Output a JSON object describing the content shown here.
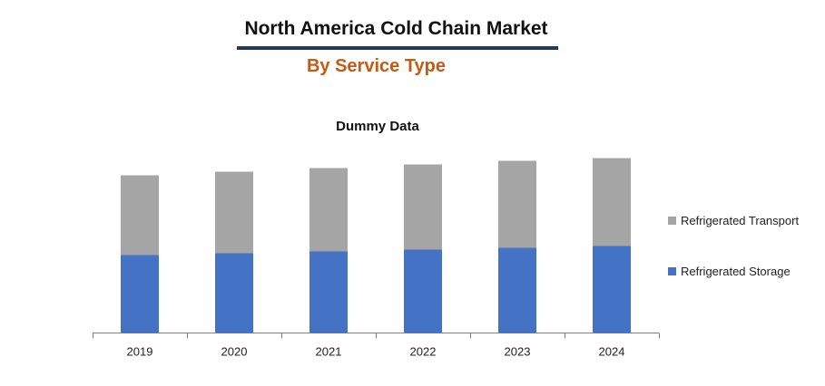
{
  "header": {
    "title": "North America Cold Chain Market",
    "subtitle": "By Service Type"
  },
  "colors": {
    "title_rule": "#1f3864",
    "subtitle": "#c55a11",
    "axis": "#808080"
  },
  "chart_data": {
    "type": "bar",
    "stacked": true,
    "title": "Dummy Data",
    "categories": [
      "2019",
      "2020",
      "2021",
      "2022",
      "2023",
      "2024"
    ],
    "series": [
      {
        "name": "Refrigerated Storage",
        "color": "#4472c4",
        "values": [
          43,
          44,
          45,
          46,
          47,
          48
        ]
      },
      {
        "name": "Refrigerated Transport",
        "color": "#a5a5a5",
        "values": [
          44,
          45,
          46,
          47,
          48,
          48.5
        ]
      }
    ],
    "ylim": [
      0,
      100
    ],
    "xlabel": "",
    "ylabel": "",
    "grid": false,
    "legend_position": "right"
  }
}
